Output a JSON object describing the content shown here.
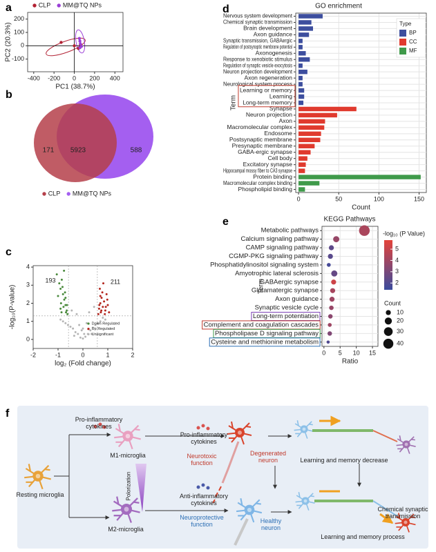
{
  "panel_labels": [
    "a",
    "b",
    "c",
    "d",
    "e",
    "f"
  ],
  "chart_data": [
    {
      "type": "scatter",
      "xlabel": "PC1 (38.7%)",
      "ylabel": "PC2 (20.3%)",
      "xlim": [
        -460,
        480
      ],
      "ylim": [
        -195,
        250
      ],
      "xticks": [
        -400,
        -200,
        0,
        200,
        400
      ],
      "yticks": [
        -100,
        0,
        100,
        200
      ],
      "zero_lines": true,
      "series": [
        {
          "name": "CLP",
          "color": "#b22234",
          "x": [
            -130,
            0,
            40,
            60
          ],
          "values": [
            25,
            0,
            -20,
            10
          ]
        },
        {
          "name": "MM@TQ NPs",
          "color": "#9b3fd6",
          "x": [
            50,
            55,
            60,
            55,
            70
          ],
          "values": [
            55,
            35,
            15,
            -15,
            -5
          ]
        }
      ]
    },
    {
      "type": "venn",
      "series": [
        {
          "name": "CLP",
          "color": "#b5404a"
        },
        {
          "name": "MM@TQ NPs",
          "color": "#a45ff0"
        }
      ],
      "values": [
        171,
        5923,
        588
      ]
    },
    {
      "type": "scatter",
      "xlabel": "log₂ (Fold change)",
      "ylabel": "-log₁₀(P-value)",
      "xlim": [
        -2,
        2
      ],
      "ylim": [
        -0.5,
        4.08
      ],
      "xticks": [
        -2,
        -1,
        0,
        1,
        2
      ],
      "yticks": [
        0,
        1,
        2,
        3,
        4
      ],
      "thresholds": {
        "x": [
          -0.58,
          0.58
        ],
        "y": 1.3
      },
      "annotations": [
        193,
        211
      ],
      "series": [
        {
          "name": "Down Regulated",
          "color": "#4a8a3c",
          "x": [
            -1.05,
            -0.95,
            -0.9,
            -0.85,
            -0.8,
            -0.75,
            -0.7,
            -0.65,
            -0.62,
            -0.88,
            -0.78,
            -0.72,
            -0.68,
            -1.0,
            -0.82,
            -0.9,
            -0.7,
            -0.64,
            -0.76,
            -0.86
          ],
          "values": [
            3.6,
            3.1,
            2.8,
            3.3,
            2.5,
            2.2,
            1.9,
            1.6,
            1.4,
            2.0,
            1.8,
            2.6,
            1.5,
            2.4,
            2.9,
            1.7,
            2.3,
            1.9,
            3.8,
            1.5
          ]
        },
        {
          "name": "Up Regulated",
          "color": "#b3261e",
          "x": [
            0.62,
            0.65,
            0.7,
            0.72,
            0.75,
            0.8,
            0.85,
            0.9,
            0.95,
            1.0,
            0.68,
            0.78,
            0.88,
            0.98,
            0.66,
            0.74,
            0.82,
            0.92,
            1.05,
            0.7
          ],
          "values": [
            1.4,
            1.7,
            2.0,
            1.5,
            2.3,
            1.8,
            2.1,
            1.6,
            2.5,
            1.9,
            2.8,
            2.6,
            1.4,
            2.2,
            1.9,
            1.6,
            3.1,
            1.8,
            1.5,
            2.4
          ]
        },
        {
          "name": "Unsignificant",
          "color": "#b5b5b5",
          "x": [
            -0.9,
            -0.8,
            -0.7,
            -0.6,
            -0.5,
            -0.4,
            -0.3,
            -0.2,
            -0.1,
            0,
            0.1,
            0.2,
            0.3,
            0.4,
            0.5,
            0.6,
            0.7,
            0.8,
            0.9,
            -0.45,
            -0.25,
            -0.05,
            0.05,
            0.25,
            0.45,
            -0.35,
            0.35,
            -0.15,
            0.15,
            0
          ],
          "values": [
            1.1,
            1.0,
            0.9,
            0.8,
            0.7,
            0.6,
            0.4,
            0.3,
            0.1,
            0.05,
            0.15,
            0.3,
            0.5,
            0.65,
            0.8,
            0.9,
            1.0,
            1.2,
            1.1,
            1.6,
            1.4,
            0.5,
            0.3,
            1.5,
            1.8,
            0.2,
            0.3,
            0.8,
            0.9,
            0.6
          ]
        }
      ]
    },
    {
      "type": "barh",
      "title": "GO enrichment",
      "xlabel": "Count",
      "ylabel": "Term",
      "legend_title": "Type",
      "xlim": [
        -3.5,
        159
      ],
      "xticks": [
        0,
        50,
        100,
        150
      ],
      "grid": true,
      "categories": [
        "Nervous system development",
        "Chemical synaptic transmission",
        "Brain development",
        "Axon guidance",
        "Synaptic transmission, GABAergic",
        "Regulation of postsynaptic membrane potential",
        "Axonogenesis",
        "Response to xenobiotic stimulus",
        "Regulation of synaptic vesicle exocytosis",
        "Neuron projection development",
        "Axon regeneration",
        "Neurological system process",
        "Learning or memory",
        "Learning",
        "Long-term memory",
        "Synapse",
        "Neuron projection",
        "Axon",
        "Macromolecular complex",
        "Endosome",
        "Postsynaptic membrane",
        "Presynaptic membrane",
        "GABA-ergic synapse",
        "Cell body",
        "Excitatory synapse",
        "Hippocampal mossy fiber to CA3 synapse",
        "Protein binding",
        "Macromolecular complex binding",
        "Phospholipid binding"
      ],
      "series": [
        {
          "name": "BP",
          "color": "#3d4e9e",
          "values": [
            30,
            16,
            18,
            13,
            5,
            5,
            9,
            14,
            5,
            11,
            5,
            5,
            7,
            7,
            6,
            null,
            null,
            null,
            null,
            null,
            null,
            null,
            null,
            null,
            null,
            null,
            null,
            null,
            null
          ]
        },
        {
          "name": "CC",
          "color": "#e03a2e",
          "values": [
            null,
            null,
            null,
            null,
            null,
            null,
            null,
            null,
            null,
            null,
            null,
            null,
            null,
            null,
            null,
            72,
            48,
            33,
            32,
            28,
            27,
            20,
            15,
            11,
            9,
            8,
            null,
            null,
            null
          ]
        },
        {
          "name": "MF",
          "color": "#3f9a4a",
          "values": [
            null,
            null,
            null,
            null,
            null,
            null,
            null,
            null,
            null,
            null,
            null,
            null,
            null,
            null,
            null,
            null,
            null,
            null,
            null,
            null,
            null,
            null,
            null,
            null,
            null,
            null,
            152,
            26,
            8
          ]
        }
      ]
    },
    {
      "type": "dot",
      "title": "KEGG Pathways",
      "xlabel": "Ratio",
      "ylabel": "Term",
      "xlim": [
        -0.6,
        16.7
      ],
      "xticks": [
        0,
        5,
        10,
        15
      ],
      "grid": true,
      "categories": [
        "Metabolic pathways",
        "Calcium signaling pathway",
        "CAMP signaling pathway",
        "CGMP-PKG signaling pathway",
        "Phosphatidylinositol signaling system",
        "Amyotrophic lateral sclerosis",
        "GABAergic synapse",
        "Glutamatergic synapse",
        "Axon guidance",
        "Synaptic vesicle cycle",
        "Long-term potentiation",
        "Complement and coagulation cascades",
        "Phospholipase D signaling pathway",
        "Cysteine and methionine metabolism"
      ],
      "values": [
        12.5,
        3.8,
        2.3,
        2.0,
        1.5,
        3.2,
        3.0,
        2.7,
        2.5,
        2.3,
        2.0,
        1.8,
        1.8,
        1.3
      ],
      "color_values": [
        4.3,
        3.8,
        2.3,
        2.2,
        1.7,
        2.5,
        5.2,
        4.2,
        4.0,
        3.8,
        3.5,
        4.0,
        3.2,
        2.0
      ],
      "sizes": [
        45,
        15,
        10,
        10,
        6,
        15,
        10,
        10,
        10,
        8,
        8,
        6,
        8,
        4
      ],
      "color_label": "-log₁₀ (P Value)",
      "colors": [
        "#3a4b9e",
        "#e4433a"
      ],
      "clim": [
        1.4,
        5.8
      ],
      "cticks": [
        2,
        3,
        4,
        5
      ],
      "size_label": "Count",
      "size_legend": [
        10,
        20,
        30,
        40
      ]
    }
  ],
  "diagram": {
    "labels": [
      "Pro-inflammatory cytokines",
      "M1-microglia",
      "Pro-inflammatory cytokines",
      "Neurotoxic function",
      "Degenerated neuron",
      "Learning and memory decrease",
      "Resting microglia",
      "Polorization",
      "Anti-inflammatory cytokines",
      "Neuroprotective function",
      "Healthy neuron",
      "M2-microglia",
      "Chemical synaptic transmission",
      "Learning and memory process"
    ]
  }
}
